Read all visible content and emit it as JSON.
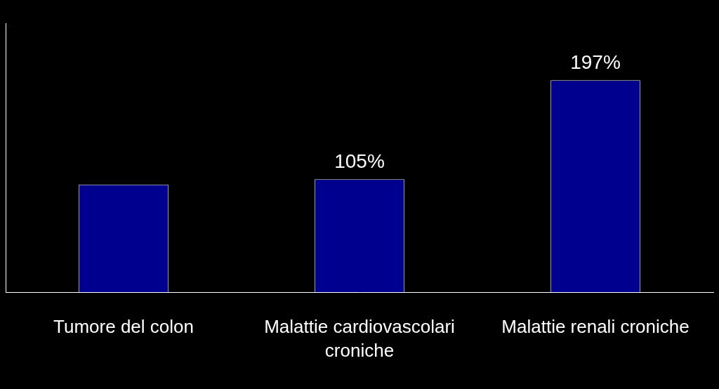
{
  "chart_data": {
    "type": "bar",
    "categories": [
      "Tumore del colon",
      "Malattie cardiovascolari croniche",
      "Malattie renali croniche"
    ],
    "values": [
      100,
      105,
      197
    ],
    "value_labels": [
      null,
      "105%",
      "197%"
    ],
    "data_labels": true,
    "color": "#00008f",
    "ylim": [
      0,
      250
    ],
    "grid": false,
    "tick_labels": "x"
  }
}
